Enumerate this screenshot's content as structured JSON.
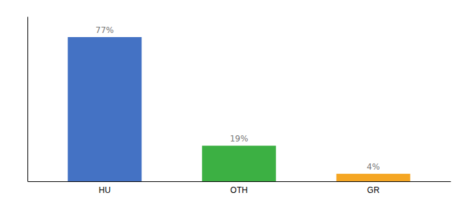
{
  "chart_data": {
    "type": "bar",
    "categories": [
      "HU",
      "OTH",
      "GR"
    ],
    "values": [
      77,
      19,
      4
    ],
    "value_labels": [
      "77%",
      "19%",
      "4%"
    ],
    "colors": [
      "#4472c4",
      "#3cb043",
      "#f5a623"
    ],
    "ylim": [
      0,
      88
    ],
    "data_labels": true,
    "tick_labels": "x",
    "grid": false
  }
}
